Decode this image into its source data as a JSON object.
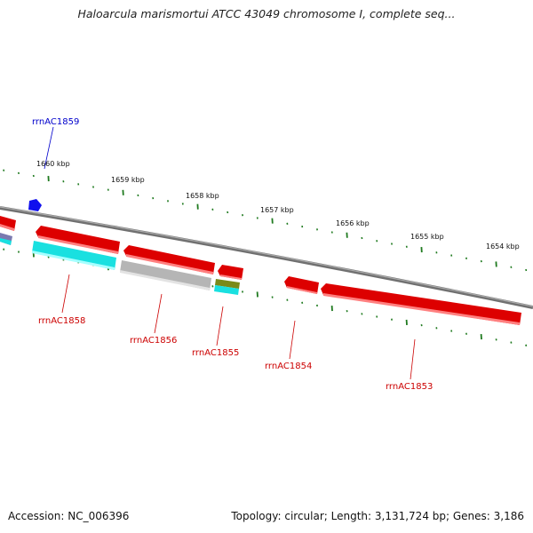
{
  "title": "Haloarcula marismortui ATCC 43049 chromosome I, complete seq...",
  "footer": {
    "accession": "Accession: NC_006396",
    "summary": "Topology: circular; Length: 3,131,724 bp; Genes: 3,186"
  },
  "ruler": {
    "labels": [
      "1660 kbp",
      "1659 kbp",
      "1658 kbp",
      "1657 kbp",
      "1656 kbp",
      "1655 kbp",
      "1654 kbp"
    ],
    "tick_color": "#1f7a1f"
  },
  "colors": {
    "backbone": "#808080",
    "gene_red": "#dd0000",
    "rrna_cyan": "#19e0e0",
    "trna_gray": "#b8b8b8",
    "other_olive": "#7a8a1a",
    "highlight_blue": "#1010ee",
    "label_red": "#cc0000",
    "label_blue": "#0000cc"
  },
  "labels": {
    "blue": [
      "rrnAC1859"
    ],
    "red": [
      "rrnAC1858",
      "rrnAC1856",
      "rrnAC1855",
      "rrnAC1854",
      "rrnAC1853"
    ]
  }
}
